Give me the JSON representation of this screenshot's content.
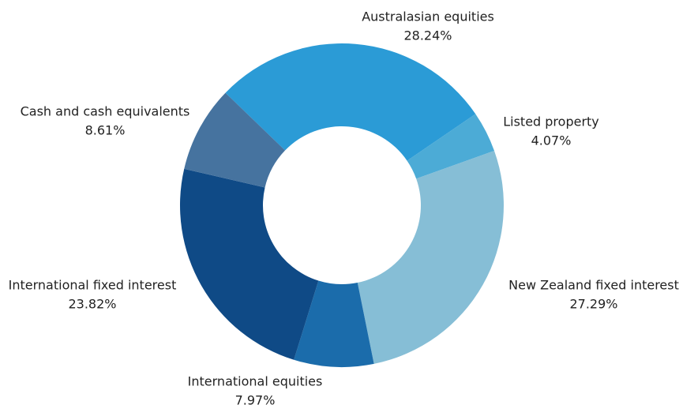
{
  "chart_data": {
    "type": "donut",
    "categories": [
      "Australasian equities",
      "Listed property",
      "New Zealand fixed interest",
      "International equities",
      "International fixed interest",
      "Cash and cash equivalents"
    ],
    "values": [
      28.24,
      4.07,
      27.29,
      7.97,
      23.82,
      8.61
    ],
    "value_labels": [
      "28.24%",
      "4.07%",
      "27.29%",
      "7.97%",
      "23.82%",
      "8.61%"
    ],
    "colors": [
      "#2b9bd6",
      "#4cabd6",
      "#86bed6",
      "#1b6cab",
      "#0f4a86",
      "#46739f"
    ]
  }
}
